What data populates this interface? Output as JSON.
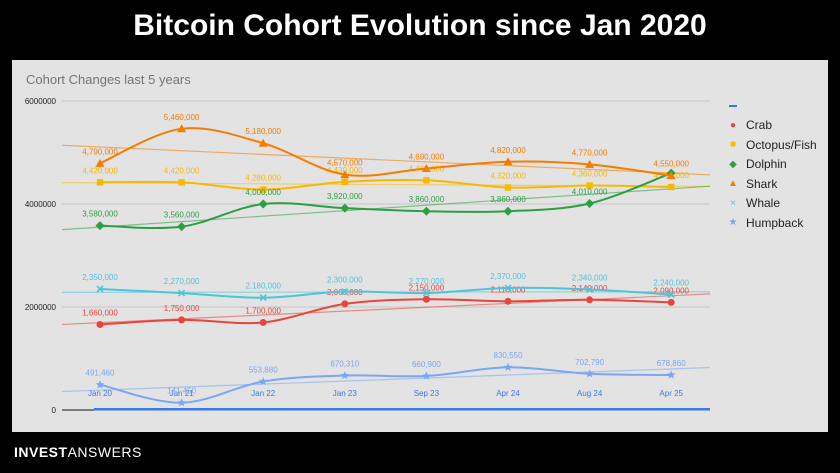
{
  "header": {
    "title": "Bitcoin Cohort Evolution since Jan 2020"
  },
  "brand": {
    "bold": "INVEST",
    "light": "ANSWERS"
  },
  "colors": {
    "background": "#000000",
    "panel": "#e3e3e3",
    "Crab": "#e8453c",
    "Octopus/Fish": "#f7b900",
    "Dolphin": "#2e9e45",
    "Shark": "#f57c00",
    "Whale": "#4fc3d9",
    "Humpback": "#7aa6f5",
    "legend_blank": "#3b78e7"
  },
  "chart_data": {
    "type": "line",
    "title": "Cohort Changes last 5 years",
    "xlabel": "",
    "ylabel": "",
    "categories": [
      "Jan 20",
      "Jan 21",
      "Jan 22",
      "Jan 23",
      "Sep 23",
      "Apr 24",
      "Aug 24",
      "Apr 25"
    ],
    "yticks": [
      "6000000",
      "4000000",
      "2000000",
      "0"
    ],
    "ylim": [
      0,
      6000000
    ],
    "grid": true,
    "legend_position": "right",
    "trendlines": true,
    "series": [
      {
        "name": "Crab",
        "marker": "circle",
        "values": [
          1660000,
          1750000,
          1700000,
          2060000,
          2150000,
          2110000,
          2140000,
          2090000
        ],
        "labels": [
          "1,660,000",
          "1,750,000",
          "1,700,000",
          "2,060,000",
          "2,150,000",
          "2,110,000",
          "2,140,000",
          "2,090,000"
        ]
      },
      {
        "name": "Octopus/Fish",
        "marker": "square",
        "values": [
          4420000,
          4420000,
          4280000,
          4430000,
          4460000,
          4320000,
          4360000,
          4330000
        ],
        "labels": [
          "4,420,000",
          "4,420,000",
          "4,280,000",
          "4,430,000",
          "4,460,000",
          "4,320,000",
          "4,360,000",
          "4,330,000"
        ]
      },
      {
        "name": "Dolphin",
        "marker": "diamond",
        "values": [
          3580000,
          3560000,
          4000000,
          3920000,
          3860000,
          3860000,
          4010000,
          4600000
        ],
        "labels": [
          "3,580,000",
          "3,560,000",
          "4,000,000",
          "3,920,000",
          "3,860,000",
          "3,860,000",
          "4,010,000",
          ""
        ]
      },
      {
        "name": "Shark",
        "marker": "triangle",
        "values": [
          4790000,
          5460000,
          5180000,
          4570000,
          4690000,
          4820000,
          4770000,
          4550000
        ],
        "labels": [
          "4,790,000",
          "5,460,000",
          "5,180,000",
          "4,570,000",
          "4,690,000",
          "4,820,000",
          "4,770,000",
          "4,550,000"
        ]
      },
      {
        "name": "Whale",
        "marker": "x",
        "values": [
          2350000,
          2270000,
          2180000,
          2300000,
          2270000,
          2370000,
          2340000,
          2240000
        ],
        "labels": [
          "2,350,000",
          "2,270,000",
          "2,180,000",
          "2,300,000",
          "2,270,000",
          "2,370,000",
          "2,340,000",
          "2,240,000"
        ]
      },
      {
        "name": "Humpback",
        "marker": "star",
        "values": [
          491460,
          141450,
          553880,
          670310,
          660900,
          830550,
          702790,
          678860
        ],
        "labels": [
          "491,460",
          "141,450",
          "553,880",
          "670,310",
          "660,900",
          "830,550",
          "702,790",
          "678,860"
        ]
      }
    ]
  }
}
